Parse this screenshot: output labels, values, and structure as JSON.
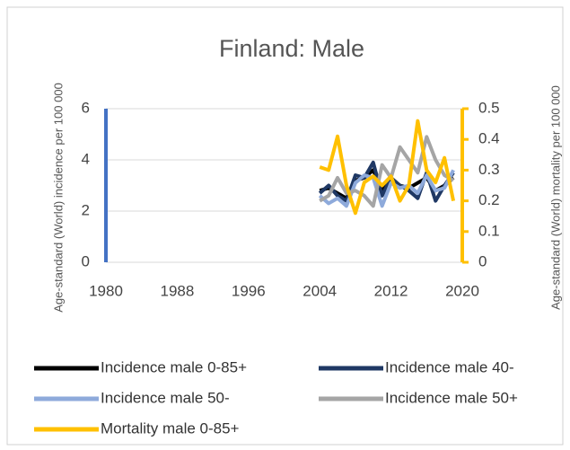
{
  "chart_data": {
    "type": "line",
    "title": "Finland: Male",
    "y_label": "Age-standard (World) incidence per 100 000",
    "y2_label": "Age-standard (World) mortality per 100 000",
    "x": [
      2004,
      2005,
      2006,
      2007,
      2008,
      2009,
      2010,
      2011,
      2012,
      2013,
      2014,
      2015,
      2016,
      2017,
      2018,
      2019
    ],
    "xlim": [
      1980,
      2020
    ],
    "xticks": [
      1980,
      1988,
      1996,
      2004,
      2012,
      2020
    ],
    "ylim": [
      0,
      6
    ],
    "yticks": [
      0,
      2,
      4,
      6
    ],
    "y2lim": [
      0,
      0.5
    ],
    "y2ticks": [
      0,
      0.1,
      0.2,
      0.3,
      0.4,
      0.5
    ],
    "grid": true,
    "legend": "bottom",
    "series": [
      {
        "name": "Incidence male 0-85+",
        "color": "#000000",
        "values": [
          2.8,
          2.9,
          2.7,
          2.5,
          3.2,
          3.3,
          3.6,
          2.8,
          3.2,
          3.0,
          2.9,
          3.1,
          3.3,
          2.8,
          3.0,
          3.3
        ]
      },
      {
        "name": "Incidence male 40-",
        "color": "#1f3864",
        "values": [
          2.7,
          3.0,
          2.6,
          2.4,
          3.4,
          3.3,
          3.9,
          2.6,
          3.3,
          3.0,
          2.8,
          2.5,
          3.5,
          2.4,
          3.0,
          3.5
        ]
      },
      {
        "name": "Incidence male 50-",
        "color": "#8eaadb",
        "values": [
          2.6,
          2.3,
          2.5,
          2.2,
          3.1,
          3.4,
          3.3,
          2.2,
          3.1,
          2.9,
          3.0,
          2.7,
          3.4,
          2.8,
          2.9,
          3.6
        ]
      },
      {
        "name": "Incidence male 50+",
        "color": "#a5a5a5",
        "values": [
          2.4,
          2.6,
          3.3,
          2.7,
          2.8,
          2.6,
          2.2,
          3.8,
          3.3,
          4.5,
          4.0,
          3.5,
          4.9,
          4.0,
          3.4,
          3.2
        ]
      },
      {
        "name": "Mortality male 0-85+",
        "color": "#ffc000",
        "axis": "y2",
        "values": [
          0.31,
          0.3,
          0.41,
          0.25,
          0.16,
          0.26,
          0.28,
          0.25,
          0.28,
          0.2,
          0.25,
          0.46,
          0.3,
          0.26,
          0.34,
          0.2
        ]
      }
    ]
  }
}
